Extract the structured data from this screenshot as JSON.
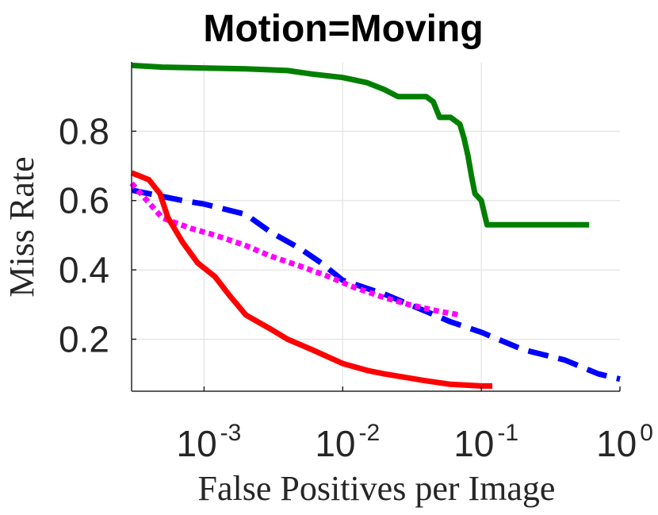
{
  "chart_data": {
    "type": "line",
    "title": "Motion=Moving",
    "xlabel": "False Positives per Image",
    "ylabel": "Miss Rate",
    "x_scale": "log",
    "xlim": [
      0.0003,
      1
    ],
    "ylim": [
      0.05,
      1.0
    ],
    "grid": true,
    "x_ticks": [
      {
        "base": "10",
        "exp": "-3",
        "value": 0.001
      },
      {
        "base": "10",
        "exp": "-2",
        "value": 0.01
      },
      {
        "base": "10",
        "exp": "-1",
        "value": 0.1
      },
      {
        "base": "10",
        "exp": "0",
        "value": 1
      }
    ],
    "y_ticks": [
      {
        "label": "0.2",
        "value": 0.2
      },
      {
        "label": "0.4",
        "value": 0.4
      },
      {
        "label": "0.6",
        "value": 0.6
      },
      {
        "label": "0.8",
        "value": 0.8
      }
    ],
    "series": [
      {
        "color": "#007f00",
        "style": "solid",
        "x": [
          0.0003,
          0.0005,
          0.002,
          0.004,
          0.006,
          0.01,
          0.015,
          0.02,
          0.025,
          0.03,
          0.04,
          0.045,
          0.05,
          0.06,
          0.07,
          0.075,
          0.08,
          0.085,
          0.09,
          0.1,
          0.11,
          0.12,
          0.6
        ],
        "y": [
          0.99,
          0.985,
          0.98,
          0.975,
          0.965,
          0.955,
          0.94,
          0.92,
          0.9,
          0.9,
          0.9,
          0.885,
          0.84,
          0.84,
          0.82,
          0.78,
          0.73,
          0.67,
          0.62,
          0.6,
          0.53,
          0.53,
          0.53
        ]
      },
      {
        "color": "#0000ff",
        "style": "dashed",
        "x": [
          0.0003,
          0.0007,
          0.001,
          0.002,
          0.003,
          0.005,
          0.007,
          0.01,
          0.02,
          0.04,
          0.06,
          0.1,
          0.2,
          0.4,
          0.7,
          1.0
        ],
        "y": [
          0.63,
          0.6,
          0.59,
          0.56,
          0.51,
          0.46,
          0.42,
          0.37,
          0.33,
          0.28,
          0.25,
          0.22,
          0.17,
          0.14,
          0.1,
          0.085
        ]
      },
      {
        "color": "#ff00ff",
        "style": "dotted",
        "x": [
          0.0003,
          0.0005,
          0.0008,
          0.0012,
          0.002,
          0.003,
          0.005,
          0.008,
          0.012,
          0.02,
          0.03,
          0.05,
          0.07
        ],
        "y": [
          0.65,
          0.55,
          0.52,
          0.5,
          0.47,
          0.44,
          0.41,
          0.38,
          0.35,
          0.32,
          0.3,
          0.28,
          0.27
        ]
      },
      {
        "color": "#ff0000",
        "style": "solid",
        "x": [
          0.0003,
          0.0004,
          0.00048,
          0.00055,
          0.0007,
          0.0009,
          0.0012,
          0.0015,
          0.002,
          0.003,
          0.004,
          0.006,
          0.01,
          0.015,
          0.02,
          0.04,
          0.06,
          0.1,
          0.12
        ],
        "y": [
          0.68,
          0.66,
          0.62,
          0.55,
          0.48,
          0.42,
          0.38,
          0.33,
          0.27,
          0.23,
          0.2,
          0.17,
          0.13,
          0.11,
          0.1,
          0.08,
          0.07,
          0.065,
          0.065
        ]
      }
    ]
  }
}
